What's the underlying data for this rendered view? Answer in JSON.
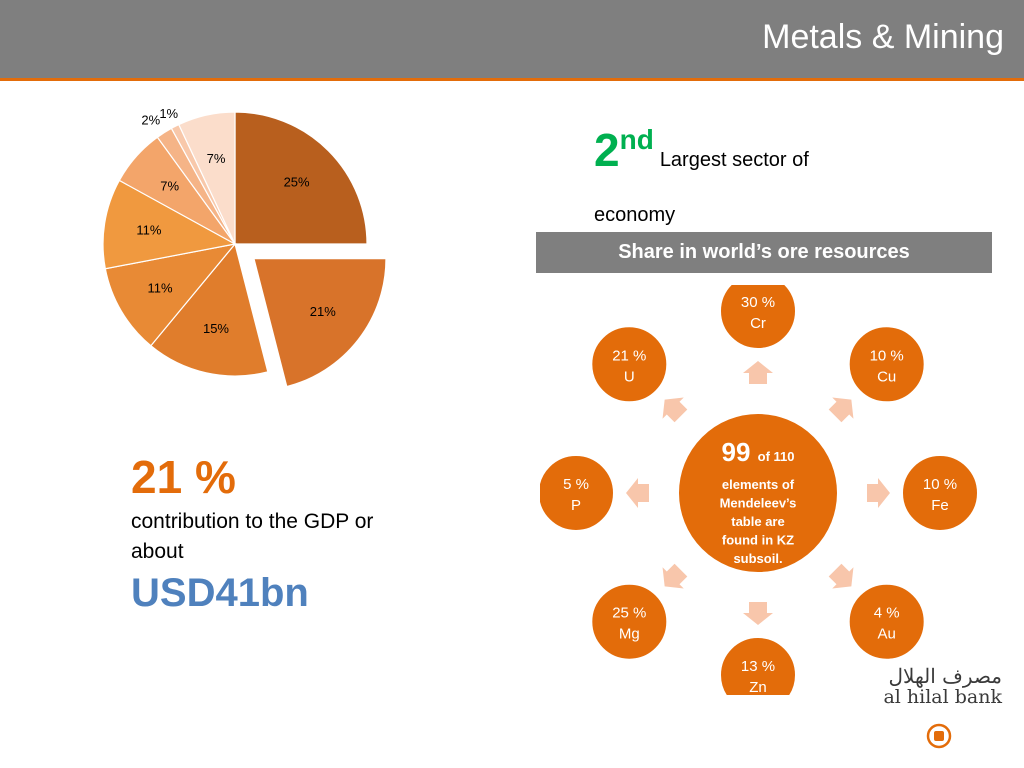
{
  "header": {
    "title": "Metals & Mining"
  },
  "rank": {
    "number": "2",
    "suffix": "nd",
    "text": "Largest sector of economy"
  },
  "share_title": "Share in world’s ore resources",
  "chart_data": {
    "type": "pie",
    "values": [
      25,
      21,
      15,
      11,
      11,
      7,
      2,
      1,
      7
    ],
    "labels": [
      "25%",
      "21%",
      "15%",
      "11%",
      "11%",
      "7%",
      "2%",
      "1%",
      "7%"
    ],
    "exploded_index": 1,
    "colors": [
      "#b85f1e",
      "#d8732a",
      "#e07d2c",
      "#e88a35",
      "#f0993f",
      "#f3a56a",
      "#f5b487",
      "#f8c8aa",
      "#fbddcb"
    ]
  },
  "elements": {
    "count": "99",
    "text_line1": "of 110",
    "text_lines": [
      "elements of",
      "Mendeleev’s",
      "table are",
      "found in KZ",
      "subsoil."
    ],
    "nodes": [
      {
        "pct": "30 %",
        "el": "Cr"
      },
      {
        "pct": "10 %",
        "el": "Cu"
      },
      {
        "pct": "10 %",
        "el": "Fe"
      },
      {
        "pct": "4 %",
        "el": "Au"
      },
      {
        "pct": "13 %",
        "el": "Zn"
      },
      {
        "pct": "25 %",
        "el": "Mg"
      },
      {
        "pct": "5 %",
        "el": "P"
      },
      {
        "pct": "21 %",
        "el": "U"
      }
    ],
    "node_color": "#e36c0a",
    "arrow_color": "#f8c6ab"
  },
  "gdp": {
    "pct": "21 %",
    "text": "contribution to the GDP or about",
    "usd": "USD41bn"
  },
  "logo": {
    "arabic": "مصرف الهلال",
    "english": "al hilal bank"
  }
}
